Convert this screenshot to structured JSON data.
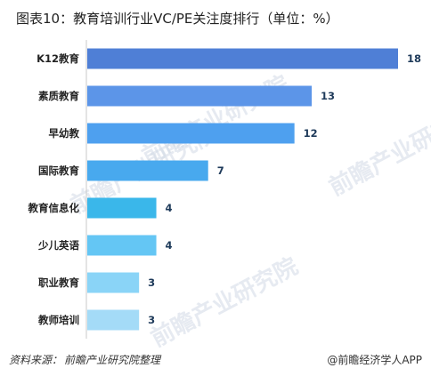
{
  "title": "图表10：教育培训行业VC/PE关注度排行（单位：%）",
  "source": {
    "label": "资料来源：",
    "text": "前瞻产业研究院整理"
  },
  "brand": "@前瞻经济学人APP",
  "watermark": "前瞻产业研究院",
  "chart_data": {
    "type": "bar",
    "orientation": "horizontal",
    "title": "图表10：教育培训行业VC/PE关注度排行（单位：%）",
    "xlabel": "",
    "ylabel": "",
    "xlim": [
      0,
      18
    ],
    "grid": false,
    "legend": "none",
    "categories": [
      "K12教育",
      "素质教育",
      "早幼教",
      "国际教育",
      "教育信息化",
      "少儿英语",
      "职业教育",
      "教师培训"
    ],
    "values": [
      18,
      13,
      12,
      7,
      4,
      4,
      3,
      3
    ],
    "colors": [
      "#4f7fd6",
      "#5c95e8",
      "#4ea0ef",
      "#48a9ee",
      "#3ab7ea",
      "#64c6f4",
      "#8ad4f7",
      "#a4dbf7"
    ],
    "label_color": "#1e3a5a"
  }
}
